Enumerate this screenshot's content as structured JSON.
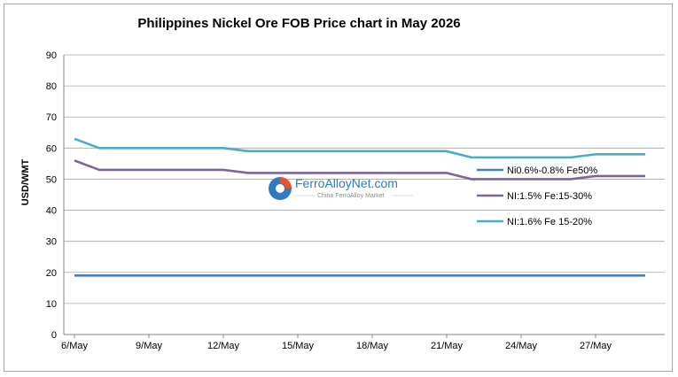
{
  "chart_data": {
    "type": "line",
    "title": "Philippines Nickel Ore FOB Price chart in May 2026",
    "ylabel": "USD/WMT",
    "xlabel": "",
    "ylim": [
      0,
      90
    ],
    "yticks": [
      0,
      10,
      20,
      30,
      40,
      50,
      60,
      70,
      80,
      90
    ],
    "x": [
      "6/May",
      "7/May",
      "8/May",
      "9/May",
      "10/May",
      "11/May",
      "12/May",
      "13/May",
      "14/May",
      "15/May",
      "16/May",
      "17/May",
      "18/May",
      "19/May",
      "20/May",
      "21/May",
      "22/May",
      "23/May",
      "24/May",
      "25/May",
      "26/May",
      "27/May",
      "28/May",
      "29/May"
    ],
    "xtick_labels": [
      "6/May",
      "9/May",
      "12/May",
      "15/May",
      "18/May",
      "21/May",
      "24/May",
      "27/May"
    ],
    "grid": "horizontal",
    "legend_position": "right",
    "series": [
      {
        "name": "Ni0.6%-0.8% Fe50%",
        "color": "#4a7ebb",
        "values": [
          19,
          19,
          19,
          19,
          19,
          19,
          19,
          19,
          19,
          19,
          19,
          19,
          19,
          19,
          19,
          19,
          19,
          19,
          19,
          19,
          19,
          19,
          19,
          19
        ]
      },
      {
        "name": "NI:1.5% Fe:15-30%",
        "color": "#7e649e",
        "values": [
          56,
          53,
          53,
          53,
          53,
          53,
          53,
          52,
          52,
          52,
          52,
          52,
          52,
          52,
          52,
          52,
          50,
          50,
          50,
          50,
          50,
          51,
          51,
          51
        ]
      },
      {
        "name": "NI:1.6% Fe 15-20%",
        "color": "#4bacc6",
        "values": [
          63,
          60,
          60,
          60,
          60,
          60,
          60,
          59,
          59,
          59,
          59,
          59,
          59,
          59,
          59,
          59,
          57,
          57,
          57,
          57,
          57,
          58,
          58,
          58
        ]
      }
    ]
  },
  "watermark": {
    "main": "FerroAlloyNet.com",
    "sub": "China FerroAlloy Market"
  }
}
